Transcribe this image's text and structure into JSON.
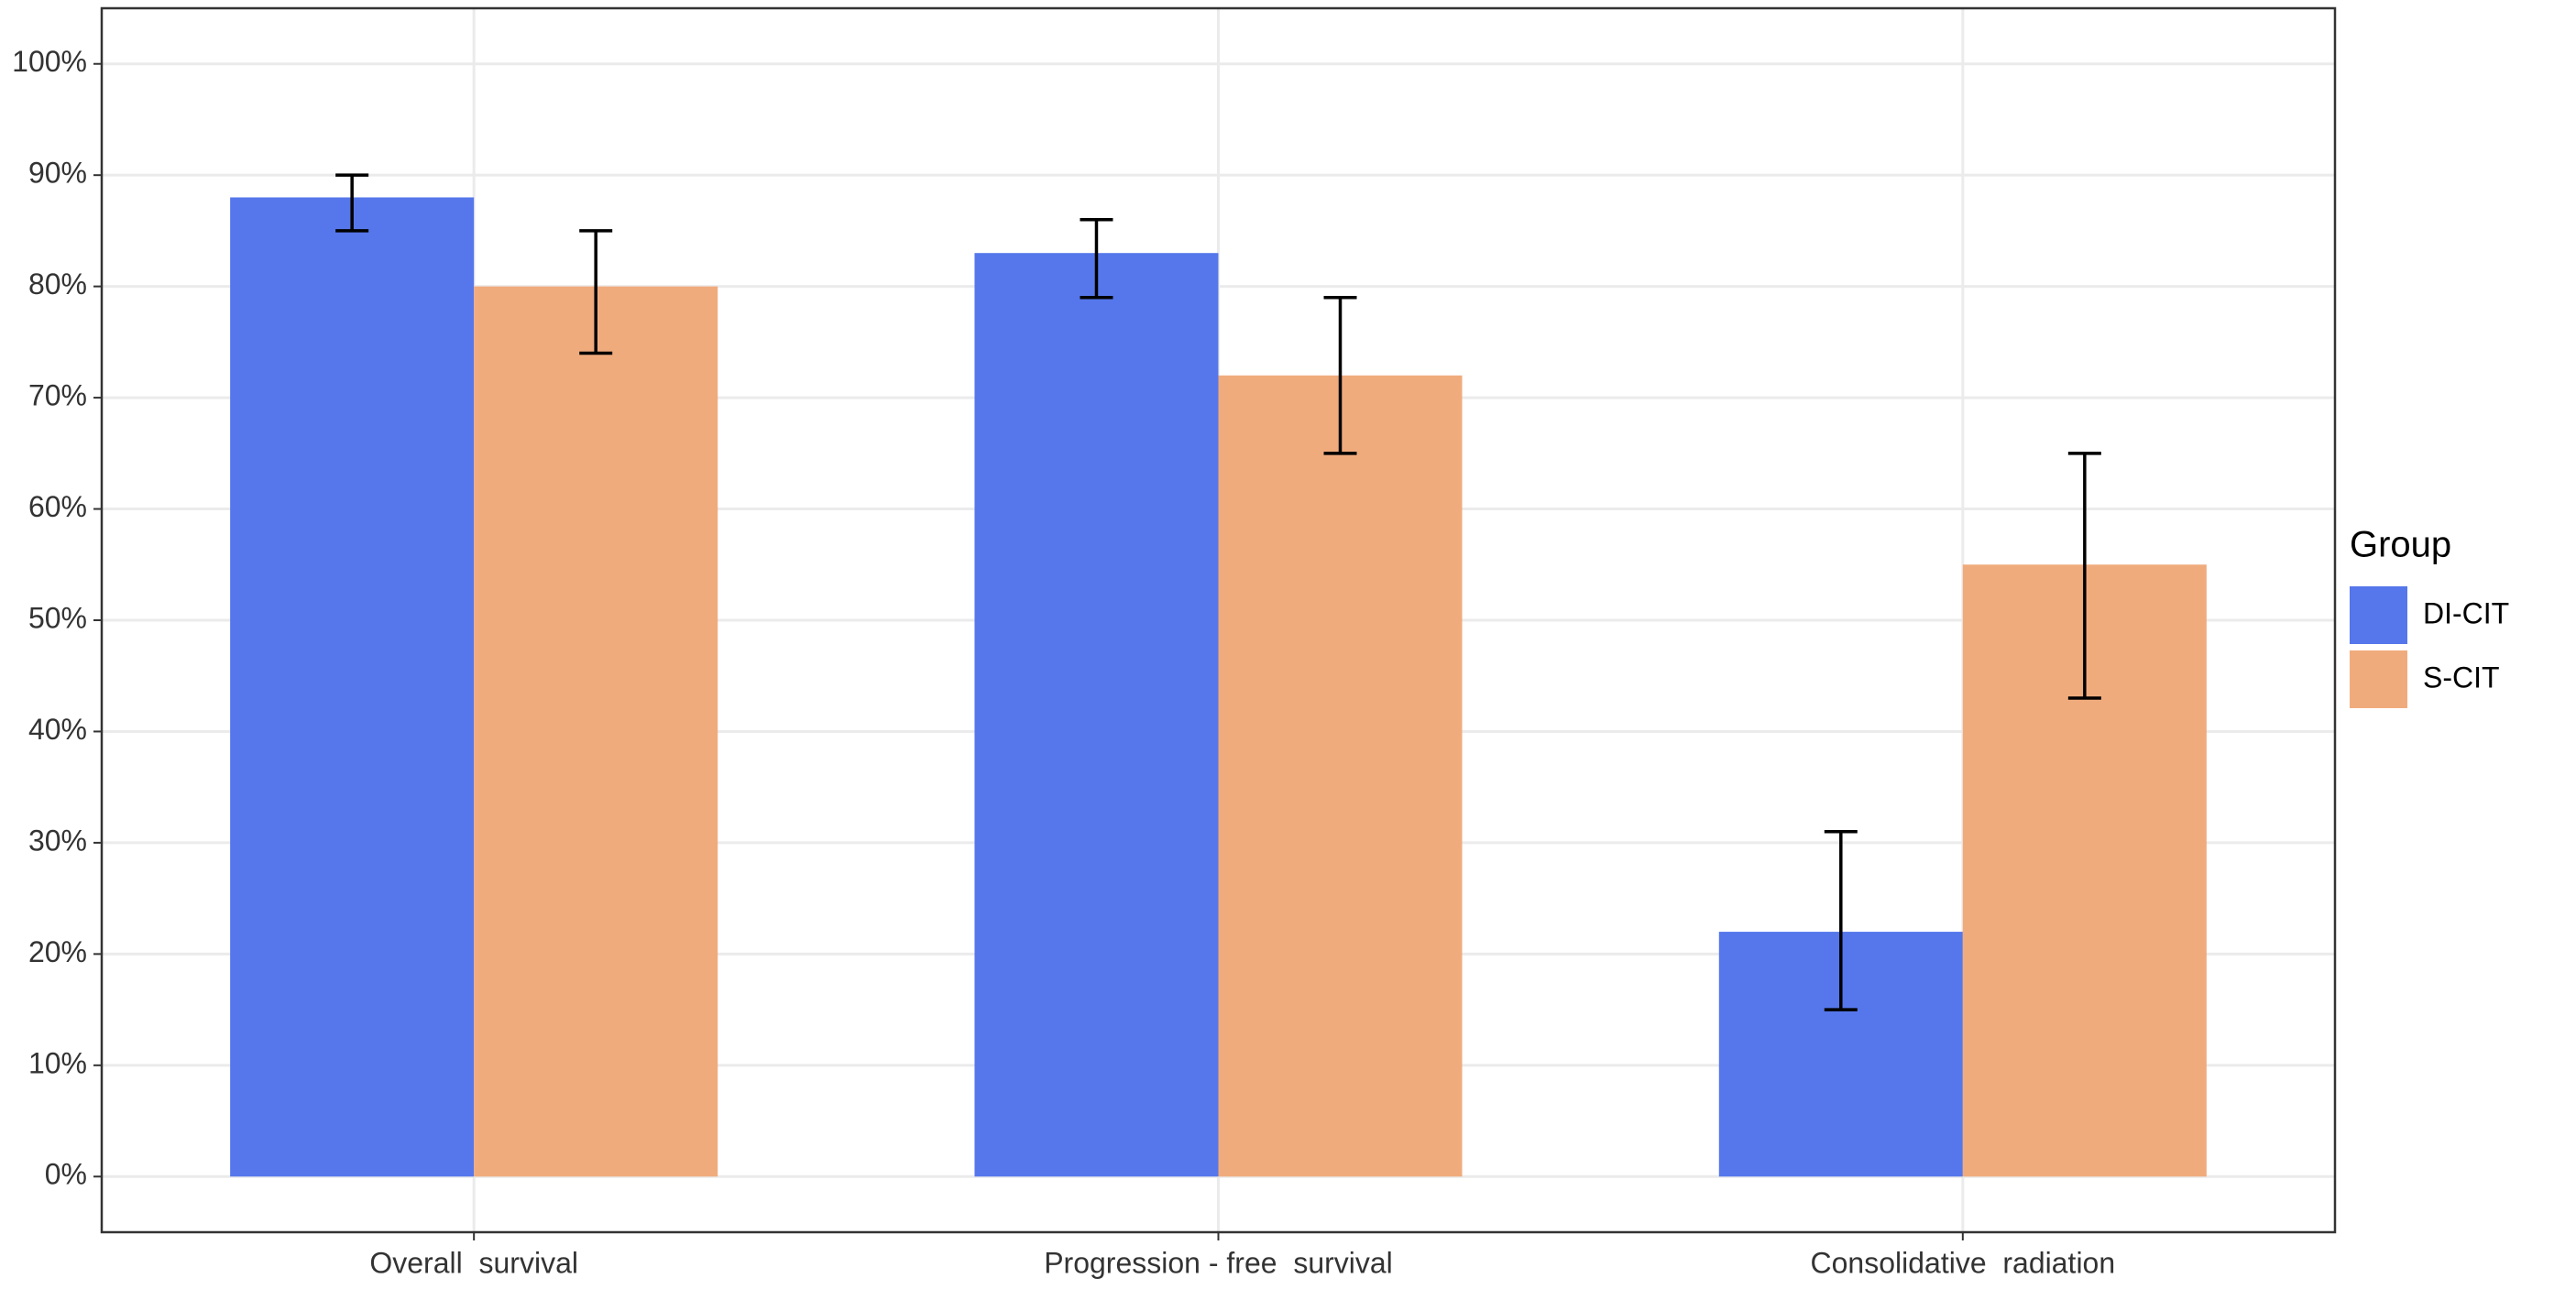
{
  "chart_data": {
    "type": "bar",
    "categories": [
      "Overall  survival",
      "Progression - free  survival",
      "Consolidative  radiation"
    ],
    "series": [
      {
        "name": "DI-CIT",
        "color": "#5577eb",
        "values": [
          88,
          83,
          22
        ],
        "lower": [
          85,
          79,
          15
        ],
        "upper": [
          90,
          86,
          31
        ]
      },
      {
        "name": "S-CIT",
        "color": "#f0ab7d",
        "values": [
          80,
          72,
          55
        ],
        "lower": [
          74,
          65,
          43
        ],
        "upper": [
          85,
          79,
          65
        ]
      }
    ],
    "legend_title": "Group",
    "legend": "right",
    "grid": true,
    "ylim": [
      -5,
      105
    ],
    "yticks": [
      {
        "value": 0,
        "label": "0%"
      },
      {
        "value": 10,
        "label": "10%"
      },
      {
        "value": 20,
        "label": "20%"
      },
      {
        "value": 30,
        "label": "30%"
      },
      {
        "value": 40,
        "label": "40%"
      },
      {
        "value": 50,
        "label": "50%"
      },
      {
        "value": 60,
        "label": "60%"
      },
      {
        "value": 70,
        "label": "70%"
      },
      {
        "value": 80,
        "label": "80%"
      },
      {
        "value": 90,
        "label": "90%"
      },
      {
        "value": 100,
        "label": "100%"
      }
    ]
  }
}
